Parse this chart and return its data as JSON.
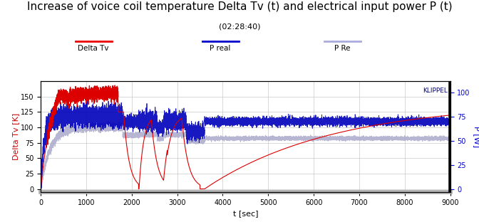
{
  "title": "Increase of voice coil temperature Delta Tv (t) and electrical input power P (t)",
  "subtitle": "(02:28:40)",
  "xlabel": "t [sec]",
  "ylabel_left": "Delta Tv [K]",
  "ylabel_right": "P [W]",
  "xlim": [
    0,
    9000
  ],
  "ylim_left": [
    -5,
    175
  ],
  "ylim_right": [
    -3.2,
    112
  ],
  "yticks_left": [
    0,
    25,
    50,
    75,
    100,
    125,
    150
  ],
  "yticks_right": [
    0,
    25,
    50,
    75,
    100
  ],
  "xticks": [
    0,
    1000,
    2000,
    3000,
    4000,
    5000,
    6000,
    7000,
    8000,
    9000
  ],
  "legend_items": [
    {
      "label": "Delta Tv",
      "color": "#ee0000",
      "lw": 2.0
    },
    {
      "label": "P real",
      "color": "#0000cc",
      "lw": 2.0
    },
    {
      "label": "P Re",
      "color": "#aaaadd",
      "lw": 2.0
    }
  ],
  "klippel_text": "KLIPPEL",
  "background_color": "#ffffff",
  "plot_bg_color": "#ffffff",
  "grid_color": "#bbbbbb",
  "title_fontsize": 11,
  "subtitle_fontsize": 8,
  "axis_label_fontsize": 8,
  "tick_fontsize": 7,
  "left_ylabel_color": "#cc0000",
  "right_ylabel_color": "#0000cc"
}
